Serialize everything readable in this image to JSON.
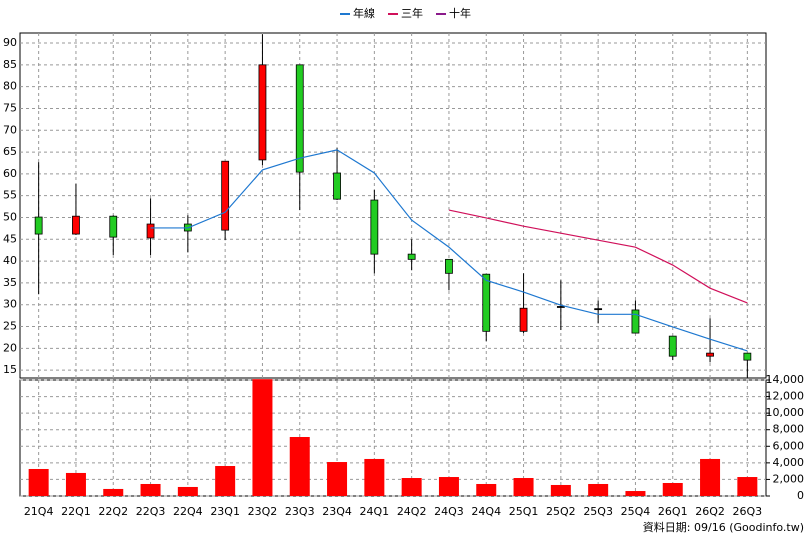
{
  "chart_data": [
    {
      "type": "candlestick",
      "categories": [
        "21Q4",
        "22Q1",
        "22Q2",
        "22Q3",
        "22Q4",
        "23Q1",
        "23Q2",
        "23Q3",
        "23Q4",
        "24Q1",
        "24Q2",
        "24Q3",
        "24Q4",
        "25Q1",
        "25Q2",
        "25Q3",
        "25Q4",
        "26Q1",
        "26Q2",
        "26Q3"
      ],
      "open": [
        50.1,
        46.2,
        50.3,
        45.3,
        48.5,
        47.1,
        63.2,
        85,
        60.2,
        54,
        41.6,
        40.4,
        37,
        23.9,
        29.6,
        29.1,
        28.8,
        22.8,
        18.2,
        18.9
      ],
      "high": [
        62.7,
        57.7,
        50.5,
        54.4,
        50.5,
        62.9,
        92,
        85,
        65.9,
        56.3,
        45,
        40.4,
        37,
        37.2,
        35.6,
        31,
        31,
        22.8,
        26.9,
        18.9
      ],
      "low": [
        32.4,
        46,
        41.4,
        41.4,
        42,
        44.8,
        62,
        51.7,
        54,
        37.2,
        37.9,
        33.3,
        21.7,
        23.5,
        24.2,
        25.8,
        23.5,
        17.3,
        16.8,
        13.2
      ],
      "close": [
        46.2,
        50.3,
        45.5,
        48.5,
        46.9,
        62.9,
        85,
        60.4,
        54.2,
        41.6,
        40.4,
        37.2,
        23.9,
        29.2,
        29.6,
        29.1,
        23.5,
        18.2,
        18.9,
        17.3
      ],
      "up_color": "#ff0000",
      "down_color": "#22cc22",
      "flat_color": "#000000",
      "series": [
        {
          "name": "年線",
          "color": "#1e78d0",
          "values": [
            null,
            null,
            null,
            47.6,
            47.6,
            51.2,
            60.9,
            63.6,
            65.5,
            60.2,
            49.4,
            43.2,
            35.6,
            32.9,
            29.9,
            27.8,
            27.8,
            24.9,
            22.1,
            19.4
          ]
        },
        {
          "name": "三年",
          "color": "#d0105a",
          "values": [
            null,
            null,
            null,
            null,
            null,
            null,
            null,
            null,
            null,
            null,
            null,
            51.7,
            49.9,
            48,
            46.4,
            44.8,
            43.2,
            39.1,
            33.8,
            30.4
          ]
        },
        {
          "name": "十年",
          "color": "#8b1a8b",
          "values": [
            null,
            null,
            null,
            null,
            null,
            null,
            null,
            null,
            null,
            null,
            null,
            null,
            null,
            null,
            null,
            null,
            null,
            null,
            null,
            null
          ]
        }
      ],
      "ylim": [
        13.2,
        92.3
      ],
      "yticks": [
        15,
        20,
        25,
        30,
        35,
        40,
        45,
        50,
        55,
        60,
        65,
        70,
        75,
        80,
        85,
        90
      ],
      "grid": true,
      "legend": "top"
    },
    {
      "type": "bar",
      "categories": [
        "21Q4",
        "22Q1",
        "22Q2",
        "22Q3",
        "22Q4",
        "23Q1",
        "23Q2",
        "23Q3",
        "23Q4",
        "24Q1",
        "24Q2",
        "24Q3",
        "24Q4",
        "25Q1",
        "25Q2",
        "25Q3",
        "25Q4",
        "26Q1",
        "26Q2",
        "26Q3"
      ],
      "values": [
        3260,
        2780,
        850,
        1450,
        1090,
        3620,
        14100,
        7120,
        4100,
        4470,
        2170,
        2290,
        1450,
        2170,
        1330,
        1450,
        600,
        1570,
        4470,
        2290
      ],
      "color": "#ff0000",
      "ylim": [
        0,
        14000
      ],
      "yticks": [
        0,
        {
          "value": 2000,
          "label": "2,000"
        },
        {
          "value": 4000,
          "label": "4,000"
        },
        {
          "value": 6000,
          "label": "6,000"
        },
        {
          "value": 8000,
          "label": "8,000"
        },
        {
          "value": 10000,
          "label": "10,000"
        },
        {
          "value": 12000,
          "label": "12,000"
        },
        {
          "value": 14000,
          "label": "14,000"
        }
      ],
      "grid": true
    }
  ],
  "footer": "資料日期: 09/16 (Goodinfo.tw)"
}
